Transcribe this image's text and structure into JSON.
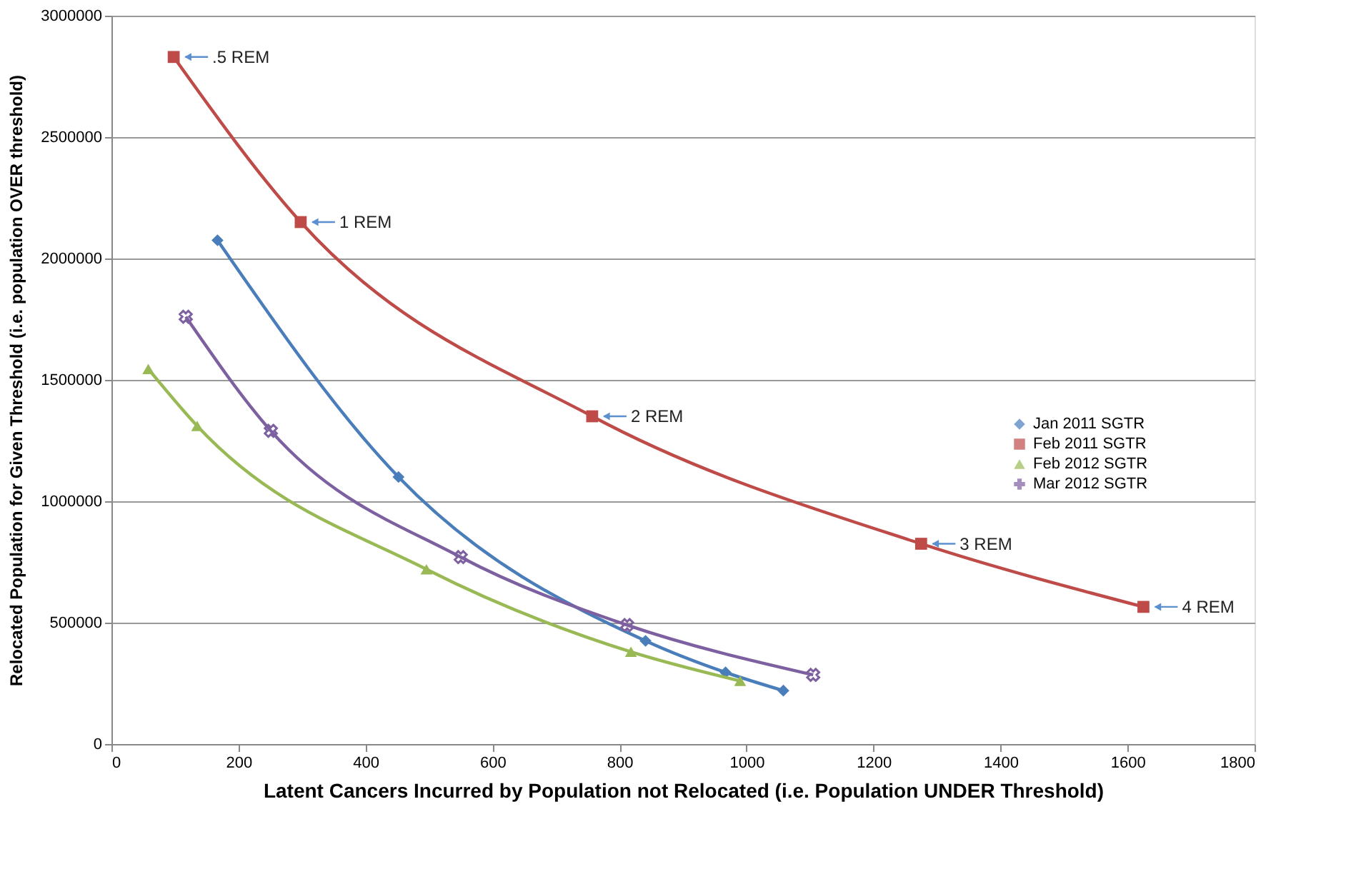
{
  "chart_data": {
    "type": "line",
    "xlabel": "Latent Cancers Incurred by Population not Relocated (i.e. Population UNDER Threshold)",
    "ylabel": "Relocated Population for Given Threshold  (i.e. population OVER threshold)",
    "xlim": [
      0,
      1800
    ],
    "xticks": [
      0,
      200,
      400,
      600,
      800,
      1000,
      1200,
      1400,
      1600,
      1800
    ],
    "ylim": [
      0,
      3000000
    ],
    "yticks": [
      0,
      500000,
      1000000,
      1500000,
      2000000,
      2500000,
      3000000
    ],
    "grid": "y",
    "legend": "right",
    "line_style": "solid",
    "series": [
      {
        "name": "Jan 2011 SGTR",
        "color": "#4a7ebb",
        "marker": "diamond",
        "x": [
          167,
          452,
          841,
          967,
          1058
        ],
        "values": [
          2075000,
          1100000,
          425000,
          295000,
          220000
        ]
      },
      {
        "name": "Feb 2011 SGTR",
        "color": "#be4b48",
        "marker": "square",
        "x": [
          98,
          298,
          757,
          1275,
          1625
        ],
        "values": [
          2830000,
          2150000,
          1350000,
          825000,
          565000
        ]
      },
      {
        "name": "Feb 2012 SGTR",
        "color": "#98b954",
        "marker": "triangle",
        "x": [
          58,
          135,
          496,
          818,
          990
        ],
        "values": [
          1545000,
          1310000,
          720000,
          380000,
          260000
        ]
      },
      {
        "name": "Mar 2012 SGTR",
        "color": "#7d60a0",
        "marker": "cross",
        "x": [
          117,
          251,
          550,
          812,
          1105
        ],
        "values": [
          1760000,
          1290000,
          770000,
          490000,
          285000
        ]
      }
    ],
    "annotations": [
      {
        "text": ".5 REM",
        "x": 98,
        "y": 2830000
      },
      {
        "text": "1 REM",
        "x": 298,
        "y": 2150000
      },
      {
        "text": "2 REM",
        "x": 757,
        "y": 1350000
      },
      {
        "text": "3 REM",
        "x": 1275,
        "y": 825000
      },
      {
        "text": "4 REM",
        "x": 1625,
        "y": 565000
      }
    ]
  }
}
